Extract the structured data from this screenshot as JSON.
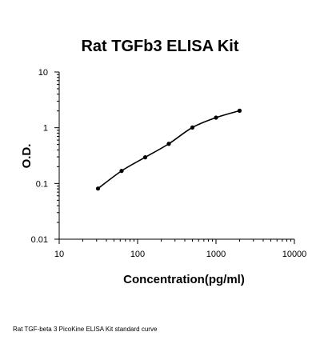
{
  "chart_data": {
    "type": "scatter",
    "title": "Rat TGFb3 ELISA Kit",
    "xlabel": "Concentration(pg/ml)",
    "ylabel": "O.D.",
    "x_scale": "log",
    "y_scale": "log",
    "xlim": [
      10,
      10000
    ],
    "ylim": [
      0.01,
      10
    ],
    "x_ticks": [
      "10",
      "100",
      "1000",
      "10000"
    ],
    "y_ticks": [
      "0.01",
      "0.1",
      "1",
      "10"
    ],
    "grid": false,
    "series": [
      {
        "points": [
          {
            "x": 31.25,
            "y": 0.081
          },
          {
            "x": 62.5,
            "y": 0.168
          },
          {
            "x": 125,
            "y": 0.295
          },
          {
            "x": 250,
            "y": 0.515
          },
          {
            "x": 500,
            "y": 1.01
          },
          {
            "x": 1000,
            "y": 1.52
          },
          {
            "x": 2000,
            "y": 2.02
          }
        ],
        "fit_curve": true
      }
    ],
    "marker_color": "#000000",
    "line_color": "#000000"
  },
  "caption": "Rat TGF-beta 3 PicoKine ELISA Kit standard curve"
}
